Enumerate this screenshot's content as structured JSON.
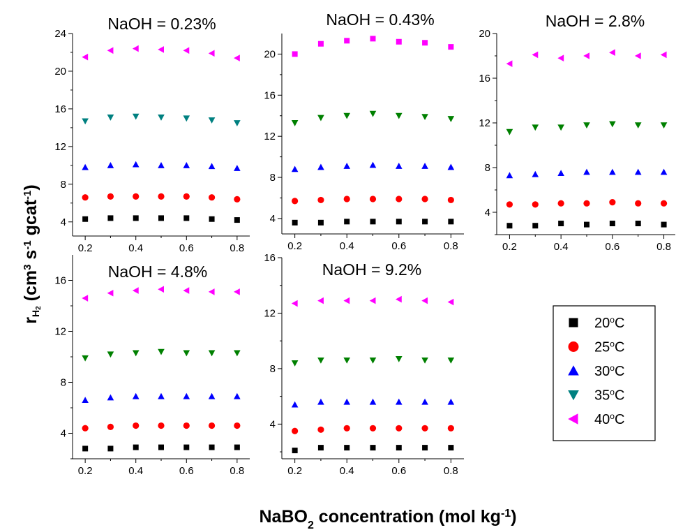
{
  "chart_data": {
    "type": "scatter",
    "xlabel": {
      "main": "NaBO",
      "sub": "2",
      "rest": " concentration (mol kg",
      "sup": "-1",
      "close": ")"
    },
    "ylabel": {
      "r": "r",
      "sub1": "H",
      "sub2": "2",
      "a": " (cm",
      "sup3": "3",
      "b": " s",
      "supm1a": "-1",
      "c": " gcat",
      "supm1b": "-1",
      "d": ")"
    },
    "x": [
      0.2,
      0.3,
      0.4,
      0.5,
      0.6,
      0.7,
      0.8
    ],
    "xticks": [
      "0.2",
      "0.4",
      "0.6",
      "0.8"
    ],
    "legend": {
      "placement": "right-bottom",
      "entries": [
        {
          "label": "20",
          "unit": "C",
          "deg": "o",
          "color": "#000000",
          "marker": "square"
        },
        {
          "label": "25",
          "unit": "C",
          "deg": "o",
          "color": "#ff0000",
          "marker": "circle"
        },
        {
          "label": "30",
          "unit": "C",
          "deg": "o",
          "color": "#0000ff",
          "marker": "triangle-up"
        },
        {
          "label": "35",
          "unit": "C",
          "deg": "o",
          "color": "#008080",
          "marker": "triangle-down"
        },
        {
          "label": "40",
          "unit": "C",
          "deg": "o",
          "color": "#ff00ff",
          "marker": "triangle-left"
        }
      ]
    },
    "panels": [
      {
        "title": "NaOH = 0.23%",
        "ylim": [
          2.5,
          24
        ],
        "yticks": [
          "4",
          "8",
          "12",
          "16",
          "20",
          "24"
        ],
        "series": [
          {
            "marker": "square",
            "color": "#000000",
            "values": [
              4.3,
              4.4,
              4.4,
              4.4,
              4.4,
              4.3,
              4.2
            ]
          },
          {
            "marker": "circle",
            "color": "#ff0000",
            "values": [
              6.6,
              6.7,
              6.7,
              6.7,
              6.7,
              6.6,
              6.4
            ]
          },
          {
            "marker": "triangle-up",
            "color": "#0000ff",
            "values": [
              9.8,
              10.0,
              10.1,
              10.0,
              10.0,
              9.9,
              9.7
            ]
          },
          {
            "marker": "triangle-down",
            "color": "#008080",
            "values": [
              14.7,
              15.1,
              15.2,
              15.1,
              15.0,
              14.8,
              14.5
            ]
          },
          {
            "marker": "triangle-left",
            "color": "#ff00ff",
            "values": [
              21.5,
              22.2,
              22.4,
              22.3,
              22.2,
              21.9,
              21.4
            ]
          }
        ]
      },
      {
        "title": "NaOH = 0.43%",
        "ylim": [
          2.5,
          22
        ],
        "yticks": [
          "4",
          "8",
          "12",
          "16",
          "20"
        ],
        "series": [
          {
            "marker": "square",
            "color": "#000000",
            "values": [
              3.6,
              3.6,
              3.7,
              3.7,
              3.7,
              3.7,
              3.7
            ]
          },
          {
            "marker": "circle",
            "color": "#ff0000",
            "values": [
              5.7,
              5.8,
              5.9,
              5.9,
              5.9,
              5.9,
              5.8
            ]
          },
          {
            "marker": "triangle-up",
            "color": "#0000ff",
            "values": [
              8.8,
              9.0,
              9.1,
              9.2,
              9.1,
              9.1,
              9.0
            ]
          },
          {
            "marker": "triangle-down",
            "color": "#008000",
            "values": [
              13.3,
              13.8,
              14.0,
              14.2,
              14.0,
              13.9,
              13.7
            ]
          },
          {
            "marker": "square",
            "color": "#ff00ff",
            "values": [
              20.0,
              21.0,
              21.3,
              21.5,
              21.2,
              21.1,
              20.7
            ]
          }
        ]
      },
      {
        "title": "NaOH = 2.8%",
        "ylim": [
          2,
          20
        ],
        "yticks": [
          "4",
          "8",
          "12",
          "16",
          "20"
        ],
        "series": [
          {
            "marker": "square",
            "color": "#000000",
            "values": [
              2.8,
              2.8,
              3.0,
              2.9,
              3.0,
              3.0,
              2.9
            ]
          },
          {
            "marker": "circle",
            "color": "#ff0000",
            "values": [
              4.7,
              4.7,
              4.8,
              4.8,
              4.9,
              4.8,
              4.8
            ]
          },
          {
            "marker": "triangle-up",
            "color": "#0000ff",
            "values": [
              7.3,
              7.4,
              7.5,
              7.6,
              7.6,
              7.6,
              7.6
            ]
          },
          {
            "marker": "triangle-down",
            "color": "#008000",
            "values": [
              11.2,
              11.6,
              11.6,
              11.8,
              11.9,
              11.8,
              11.8
            ]
          },
          {
            "marker": "triangle-left",
            "color": "#ff00ff",
            "values": [
              17.3,
              18.1,
              17.8,
              18.0,
              18.3,
              18.0,
              18.1
            ]
          }
        ]
      },
      {
        "title": "NaOH = 4.8%",
        "ylim": [
          2,
          18
        ],
        "yticks": [
          "4",
          "8",
          "12",
          "16"
        ],
        "series": [
          {
            "marker": "square",
            "color": "#000000",
            "values": [
              2.8,
              2.8,
              2.9,
              2.9,
              2.9,
              2.9,
              2.9
            ]
          },
          {
            "marker": "circle",
            "color": "#ff0000",
            "values": [
              4.4,
              4.5,
              4.6,
              4.6,
              4.6,
              4.6,
              4.6
            ]
          },
          {
            "marker": "triangle-up",
            "color": "#0000ff",
            "values": [
              6.6,
              6.8,
              6.9,
              6.9,
              6.9,
              6.9,
              6.9
            ]
          },
          {
            "marker": "triangle-down",
            "color": "#008000",
            "values": [
              9.9,
              10.2,
              10.3,
              10.4,
              10.3,
              10.3,
              10.3
            ]
          },
          {
            "marker": "triangle-left",
            "color": "#ff00ff",
            "values": [
              14.6,
              15.0,
              15.2,
              15.3,
              15.2,
              15.1,
              15.1
            ]
          }
        ]
      },
      {
        "title": "NaOH = 9.2%",
        "ylim": [
          1.5,
          16
        ],
        "yticks": [
          "4",
          "8",
          "12",
          "16"
        ],
        "series": [
          {
            "marker": "square",
            "color": "#000000",
            "values": [
              2.1,
              2.3,
              2.3,
              2.3,
              2.3,
              2.3,
              2.3
            ]
          },
          {
            "marker": "circle",
            "color": "#ff0000",
            "values": [
              3.5,
              3.6,
              3.7,
              3.7,
              3.7,
              3.7,
              3.7
            ]
          },
          {
            "marker": "triangle-up",
            "color": "#0000ff",
            "values": [
              5.4,
              5.6,
              5.6,
              5.6,
              5.6,
              5.6,
              5.6
            ]
          },
          {
            "marker": "triangle-down",
            "color": "#008000",
            "values": [
              8.4,
              8.6,
              8.6,
              8.6,
              8.7,
              8.6,
              8.6
            ]
          },
          {
            "marker": "triangle-left",
            "color": "#ff00ff",
            "values": [
              12.7,
              12.9,
              12.9,
              12.9,
              13.0,
              12.9,
              12.8
            ]
          }
        ]
      }
    ]
  }
}
